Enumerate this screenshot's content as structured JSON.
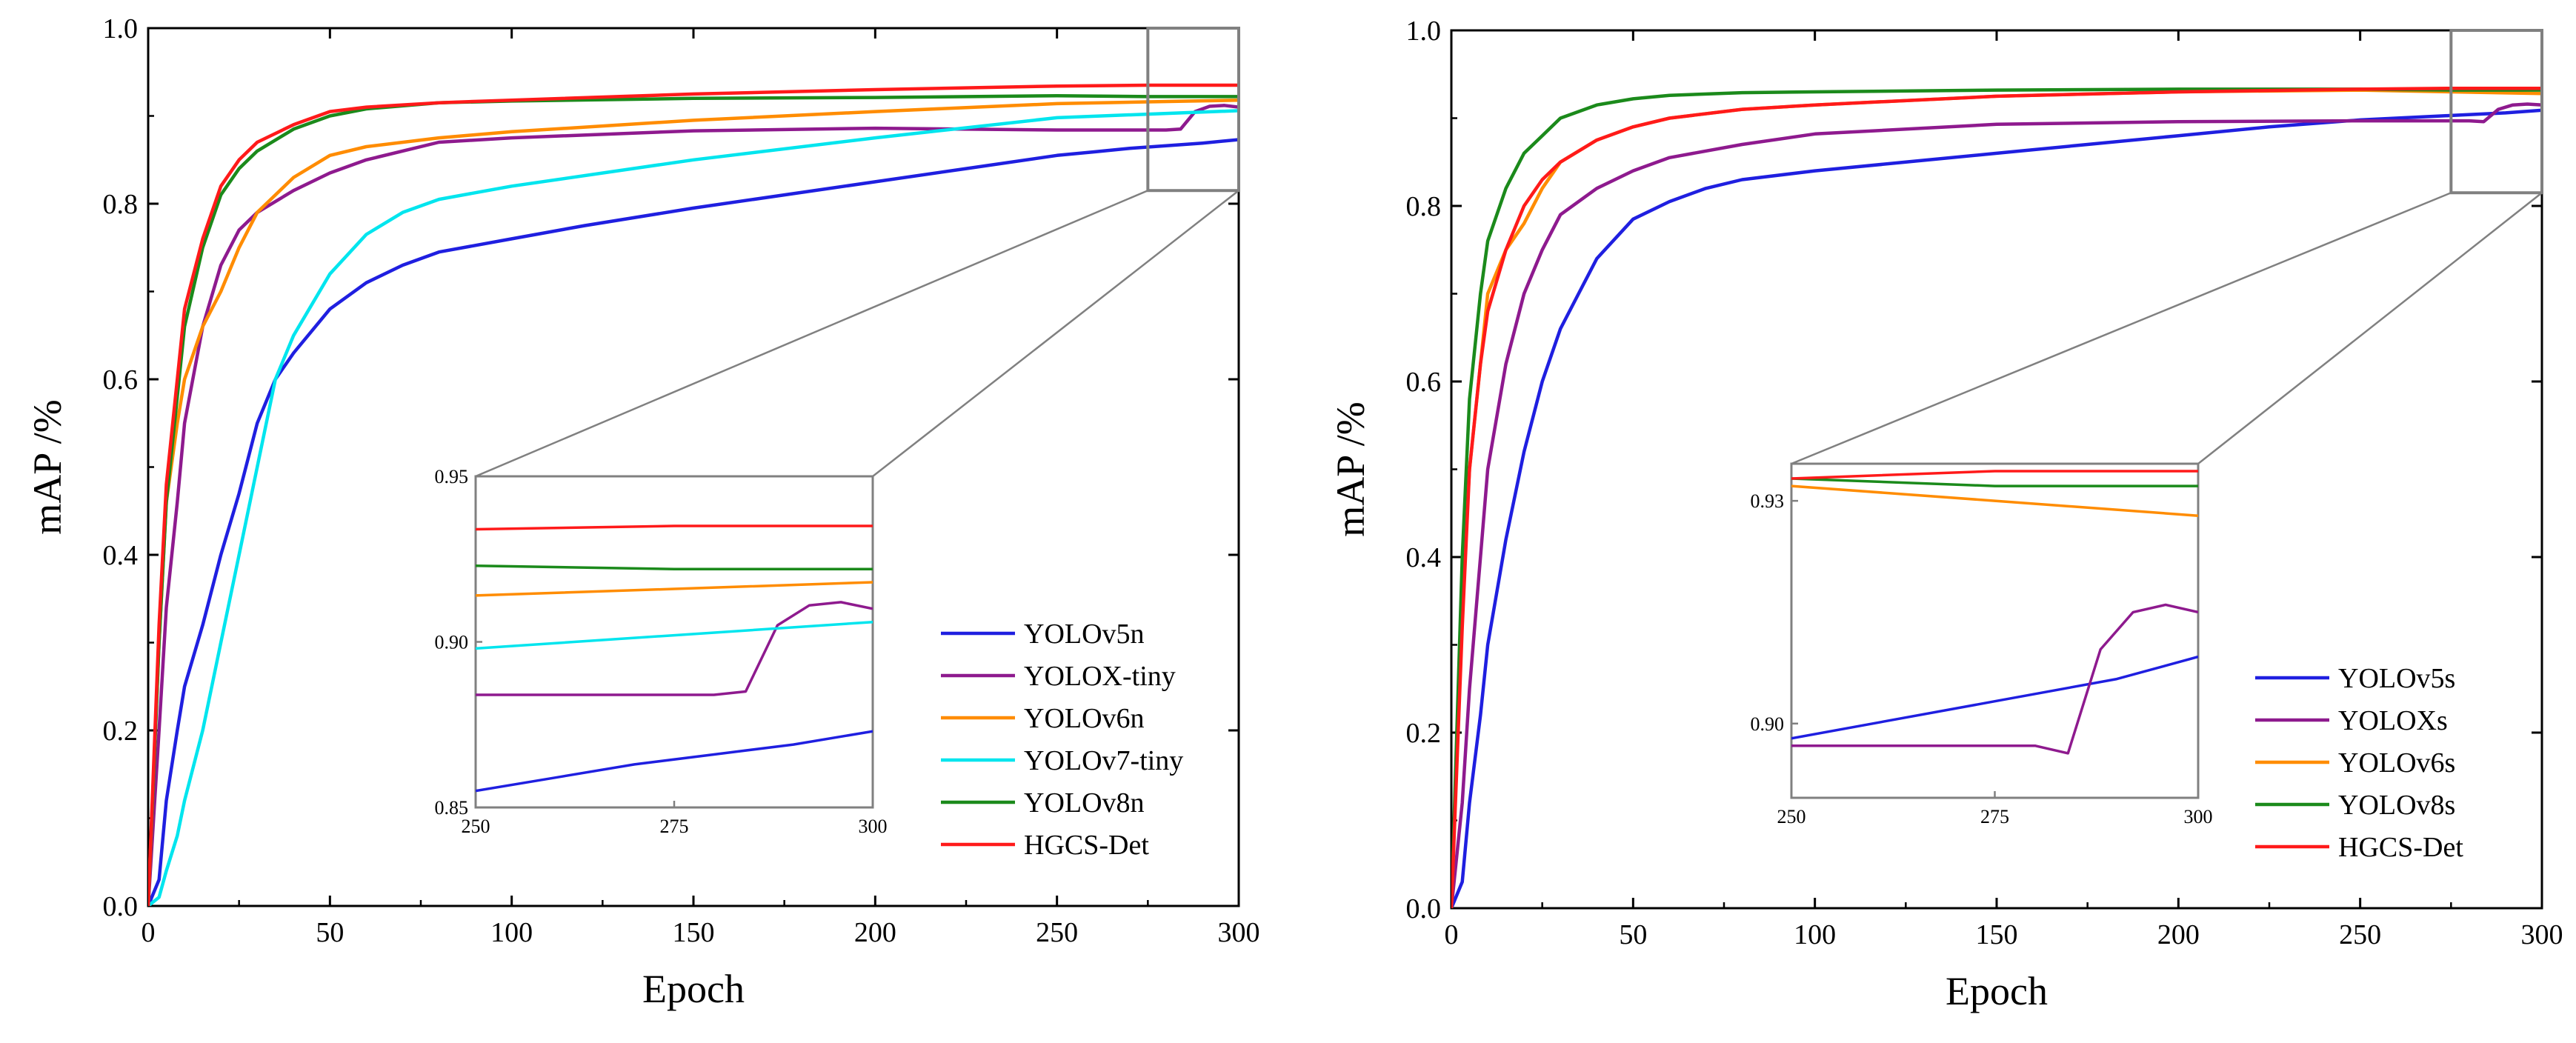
{
  "chart_data": [
    {
      "type": "line",
      "xlabel": "Epoch",
      "ylabel": "mAP /%",
      "xlim": [
        0,
        300
      ],
      "ylim": [
        0.0,
        1.0
      ],
      "x_ticks": [
        0,
        50,
        100,
        150,
        200,
        250,
        300
      ],
      "y_ticks": [
        0.0,
        0.2,
        0.4,
        0.6,
        0.8,
        1.0
      ],
      "legend_position": "bottom-right",
      "zoom_region": {
        "x": [
          275,
          300
        ],
        "y": [
          0.815,
          1.0
        ]
      },
      "series": [
        {
          "name": "YOLOv5n",
          "color": "#1f1fe0",
          "x": [
            0,
            3,
            5,
            8,
            10,
            15,
            20,
            25,
            30,
            35,
            40,
            50,
            60,
            70,
            80,
            100,
            120,
            150,
            175,
            200,
            225,
            250,
            260,
            270,
            280,
            290,
            300
          ],
          "values": [
            0,
            0.03,
            0.12,
            0.2,
            0.25,
            0.32,
            0.4,
            0.47,
            0.55,
            0.6,
            0.63,
            0.68,
            0.71,
            0.73,
            0.745,
            0.76,
            0.775,
            0.795,
            0.81,
            0.825,
            0.84,
            0.855,
            0.859,
            0.863,
            0.866,
            0.869,
            0.873
          ]
        },
        {
          "name": "YOLOX-tiny",
          "color": "#8e1a8e",
          "x": [
            0,
            3,
            5,
            8,
            10,
            15,
            20,
            25,
            30,
            40,
            50,
            60,
            80,
            100,
            150,
            200,
            250,
            280,
            284,
            288,
            292,
            296,
            300
          ],
          "values": [
            0,
            0.2,
            0.34,
            0.46,
            0.55,
            0.66,
            0.73,
            0.77,
            0.79,
            0.815,
            0.835,
            0.85,
            0.87,
            0.875,
            0.883,
            0.886,
            0.884,
            0.884,
            0.885,
            0.905,
            0.911,
            0.912,
            0.91
          ]
        },
        {
          "name": "YOLOv6n",
          "color": "#ff8c00",
          "x": [
            0,
            3,
            5,
            8,
            10,
            15,
            20,
            25,
            30,
            40,
            50,
            60,
            80,
            100,
            150,
            200,
            250,
            275,
            300
          ],
          "values": [
            0,
            0.3,
            0.46,
            0.55,
            0.6,
            0.66,
            0.7,
            0.75,
            0.79,
            0.83,
            0.855,
            0.865,
            0.875,
            0.882,
            0.895,
            0.905,
            0.914,
            0.916,
            0.918
          ]
        },
        {
          "name": "YOLOv7-tiny",
          "color": "#00e5ee",
          "x": [
            0,
            3,
            5,
            8,
            10,
            15,
            20,
            25,
            30,
            35,
            40,
            50,
            60,
            70,
            80,
            100,
            150,
            200,
            250,
            275,
            300
          ],
          "values": [
            0,
            0.01,
            0.04,
            0.08,
            0.12,
            0.2,
            0.3,
            0.4,
            0.5,
            0.6,
            0.65,
            0.72,
            0.765,
            0.79,
            0.805,
            0.82,
            0.85,
            0.875,
            0.898,
            0.902,
            0.906
          ]
        },
        {
          "name": "YOLOv8n",
          "color": "#1b8a1b",
          "x": [
            0,
            3,
            5,
            8,
            10,
            15,
            20,
            25,
            30,
            40,
            50,
            60,
            80,
            100,
            150,
            200,
            250,
            275,
            300
          ],
          "values": [
            0,
            0.3,
            0.46,
            0.58,
            0.66,
            0.75,
            0.81,
            0.84,
            0.86,
            0.885,
            0.9,
            0.908,
            0.915,
            0.917,
            0.92,
            0.921,
            0.923,
            0.922,
            0.922
          ]
        },
        {
          "name": "HGCS-Det",
          "color": "#ff1a1a",
          "x": [
            0,
            3,
            5,
            8,
            10,
            15,
            20,
            25,
            30,
            40,
            50,
            60,
            80,
            100,
            150,
            200,
            250,
            275,
            300
          ],
          "values": [
            0,
            0.32,
            0.48,
            0.6,
            0.68,
            0.76,
            0.82,
            0.85,
            0.87,
            0.89,
            0.905,
            0.91,
            0.915,
            0.918,
            0.925,
            0.93,
            0.934,
            0.935,
            0.935
          ]
        }
      ],
      "inset": {
        "xlim": [
          250,
          300
        ],
        "ylim": [
          0.85,
          0.95
        ],
        "x_ticks": [
          250,
          275,
          300
        ],
        "y_ticks": [
          0.85,
          0.9,
          0.95
        ],
        "x_tick_labels": [
          "250",
          "275",
          "300"
        ],
        "y_tick_labels": [
          "0.85",
          "0.90",
          "0.95"
        ]
      }
    },
    {
      "type": "line",
      "xlabel": "Epoch",
      "ylabel": "mAP /%",
      "xlim": [
        0,
        300
      ],
      "ylim": [
        0.0,
        1.0
      ],
      "x_ticks": [
        0,
        50,
        100,
        150,
        200,
        250,
        300
      ],
      "y_ticks": [
        0.0,
        0.2,
        0.4,
        0.6,
        0.8,
        1.0
      ],
      "legend_position": "bottom-right",
      "zoom_region": {
        "x": [
          275,
          300
        ],
        "y": [
          0.815,
          1.0
        ]
      },
      "series": [
        {
          "name": "YOLOv5s",
          "color": "#1f1fe0",
          "x": [
            0,
            3,
            5,
            8,
            10,
            15,
            20,
            25,
            30,
            35,
            40,
            50,
            60,
            70,
            80,
            100,
            125,
            150,
            175,
            200,
            225,
            250,
            275,
            290,
            300
          ],
          "values": [
            0,
            0.03,
            0.12,
            0.22,
            0.3,
            0.42,
            0.52,
            0.6,
            0.66,
            0.7,
            0.74,
            0.785,
            0.805,
            0.82,
            0.83,
            0.84,
            0.85,
            0.86,
            0.87,
            0.88,
            0.89,
            0.898,
            0.903,
            0.906,
            0.909
          ]
        },
        {
          "name": "YOLOXs",
          "color": "#8e1a8e",
          "x": [
            0,
            3,
            5,
            8,
            10,
            15,
            20,
            25,
            30,
            40,
            50,
            60,
            80,
            100,
            150,
            200,
            250,
            280,
            284,
            288,
            292,
            296,
            300
          ],
          "values": [
            0,
            0.12,
            0.25,
            0.4,
            0.5,
            0.62,
            0.7,
            0.75,
            0.79,
            0.82,
            0.84,
            0.855,
            0.87,
            0.882,
            0.893,
            0.896,
            0.897,
            0.897,
            0.896,
            0.91,
            0.915,
            0.916,
            0.915
          ]
        },
        {
          "name": "YOLOv6s",
          "color": "#ff8c00",
          "x": [
            0,
            3,
            5,
            8,
            10,
            15,
            20,
            25,
            30,
            40,
            50,
            60,
            80,
            100,
            150,
            200,
            250,
            275,
            300
          ],
          "values": [
            0,
            0.35,
            0.5,
            0.62,
            0.7,
            0.75,
            0.78,
            0.82,
            0.85,
            0.875,
            0.89,
            0.9,
            0.91,
            0.915,
            0.925,
            0.93,
            0.932,
            0.93,
            0.928
          ]
        },
        {
          "name": "YOLOv8s",
          "color": "#1b8a1b",
          "x": [
            0,
            3,
            5,
            8,
            10,
            15,
            20,
            25,
            30,
            40,
            50,
            60,
            80,
            100,
            150,
            200,
            250,
            275,
            300
          ],
          "values": [
            0,
            0.4,
            0.58,
            0.7,
            0.76,
            0.82,
            0.86,
            0.88,
            0.9,
            0.915,
            0.922,
            0.926,
            0.929,
            0.93,
            0.932,
            0.933,
            0.933,
            0.932,
            0.932
          ]
        },
        {
          "name": "HGCS-Det",
          "color": "#ff1a1a",
          "x": [
            0,
            3,
            5,
            8,
            10,
            15,
            20,
            25,
            30,
            40,
            50,
            60,
            80,
            100,
            150,
            200,
            250,
            275,
            300
          ],
          "values": [
            0,
            0.32,
            0.5,
            0.62,
            0.68,
            0.75,
            0.8,
            0.83,
            0.85,
            0.875,
            0.89,
            0.9,
            0.91,
            0.915,
            0.925,
            0.93,
            0.933,
            0.934,
            0.934
          ]
        }
      ],
      "inset": {
        "xlim": [
          250,
          300
        ],
        "ylim": [
          0.89,
          0.935
        ],
        "x_ticks": [
          250,
          275,
          300
        ],
        "y_ticks": [
          0.9,
          0.93
        ],
        "x_tick_labels": [
          "250",
          "275",
          "300"
        ],
        "y_tick_labels": [
          "0.90",
          "0.93"
        ]
      }
    }
  ]
}
